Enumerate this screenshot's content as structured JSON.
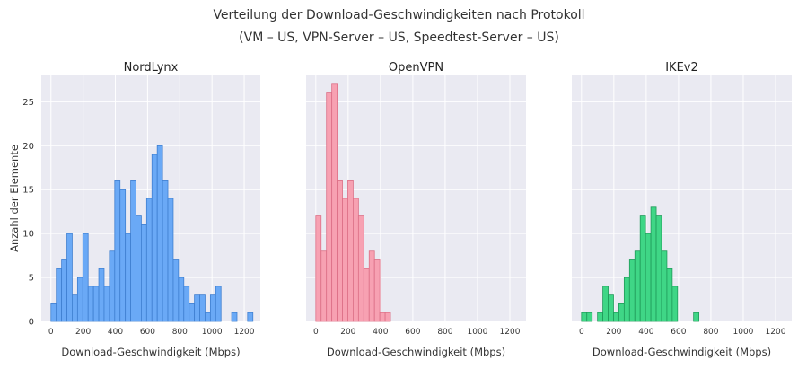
{
  "title": "Verteilung der Download-Geschwindigkeiten nach Protokoll",
  "subtitle": "(VM – US, VPN-Server – US, Speedtest-Server – US)",
  "chart_data": [
    {
      "type": "bar",
      "subtitle": "NordLynx",
      "xlabel": "Download-Geschwindigkeit (Mbps)",
      "ylabel": "Anzahl der Elemente",
      "xlim": [
        -60,
        1300
      ],
      "ylim": [
        0,
        28
      ],
      "xticks": [
        0,
        200,
        400,
        600,
        800,
        1000,
        1200
      ],
      "yticks": [
        0,
        5,
        10,
        15,
        20,
        25
      ],
      "bin_width": 33,
      "bin_start": 0,
      "color": "#6aa9f6",
      "edge_color": "#3f7fd0",
      "values": [
        2,
        6,
        7,
        10,
        3,
        5,
        10,
        4,
        4,
        6,
        4,
        8,
        16,
        15,
        10,
        16,
        12,
        11,
        14,
        19,
        20,
        16,
        14,
        7,
        5,
        4,
        2,
        3,
        3,
        1,
        3,
        4,
        0,
        0,
        1,
        0,
        0,
        1
      ]
    },
    {
      "type": "bar",
      "subtitle": "OpenVPN",
      "xlabel": "Download-Geschwindigkeit (Mbps)",
      "ylabel": "",
      "xlim": [
        -60,
        1300
      ],
      "ylim": [
        0,
        28
      ],
      "xticks": [
        0,
        200,
        400,
        600,
        800,
        1000,
        1200
      ],
      "yticks": [
        0,
        5,
        10,
        15,
        20,
        25
      ],
      "bin_width": 33,
      "bin_start": 0,
      "color": "#f7a1b2",
      "edge_color": "#dc6f86",
      "values": [
        12,
        8,
        26,
        27,
        16,
        14,
        16,
        14,
        12,
        6,
        8,
        7,
        1,
        1
      ]
    },
    {
      "type": "bar",
      "subtitle": "IKEv2",
      "xlabel": "Download-Geschwindigkeit (Mbps)",
      "ylabel": "",
      "xlim": [
        -60,
        1300
      ],
      "ylim": [
        0,
        28
      ],
      "xticks": [
        0,
        200,
        400,
        600,
        800,
        1000,
        1200
      ],
      "yticks": [
        0,
        5,
        10,
        15,
        20,
        25
      ],
      "bin_width": 33,
      "bin_start": 0,
      "color": "#3fd686",
      "edge_color": "#1f9a59",
      "values": [
        1,
        1,
        0,
        1,
        4,
        3,
        1,
        2,
        5,
        7,
        8,
        12,
        10,
        13,
        12,
        8,
        6,
        4,
        0,
        0,
        0,
        1
      ]
    }
  ]
}
